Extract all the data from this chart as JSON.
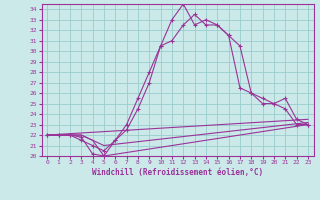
{
  "xlabel": "Windchill (Refroidissement éolien,°C)",
  "bg_color": "#cce9e9",
  "grid_color": "#99cccc",
  "line_color": "#993399",
  "xlim": [
    -0.5,
    23.5
  ],
  "ylim": [
    20,
    34.5
  ],
  "xticks": [
    0,
    1,
    2,
    3,
    4,
    5,
    6,
    7,
    8,
    9,
    10,
    11,
    12,
    13,
    14,
    15,
    16,
    17,
    18,
    19,
    20,
    21,
    22,
    23
  ],
  "yticks": [
    20,
    21,
    22,
    23,
    24,
    25,
    26,
    27,
    28,
    29,
    30,
    31,
    32,
    33,
    34
  ],
  "line1_x": [
    0,
    1,
    2,
    3,
    4,
    5,
    6,
    7,
    8,
    9,
    10,
    11,
    12,
    13,
    14,
    15,
    16,
    17,
    18,
    19,
    20,
    21,
    22,
    23
  ],
  "line1_y": [
    22.0,
    22.0,
    22.0,
    21.5,
    21.0,
    20.5,
    21.5,
    22.5,
    24.5,
    27.0,
    30.5,
    33.0,
    34.5,
    32.5,
    33.0,
    32.5,
    31.5,
    30.5,
    26.0,
    25.0,
    25.0,
    24.5,
    23.0,
    23.0
  ],
  "line2_x": [
    0,
    1,
    2,
    3,
    4,
    5,
    6,
    7,
    8,
    9,
    10,
    11,
    12,
    13,
    14,
    15,
    16,
    17,
    18,
    19,
    20,
    21,
    22,
    23
  ],
  "line2_y": [
    22.0,
    22.0,
    22.0,
    21.8,
    20.2,
    20.0,
    21.5,
    23.0,
    25.5,
    28.0,
    30.5,
    31.0,
    32.5,
    33.5,
    32.5,
    32.5,
    31.5,
    26.5,
    26.0,
    25.5,
    25.0,
    25.5,
    23.5,
    23.0
  ],
  "line3_x": [
    0,
    23
  ],
  "line3_y": [
    22.0,
    23.5
  ],
  "line4_x": [
    0,
    3,
    4,
    5,
    23
  ],
  "line4_y": [
    22.0,
    22.0,
    21.5,
    21.0,
    23.2
  ],
  "line5_x": [
    0,
    3,
    4,
    5,
    23
  ],
  "line5_y": [
    22.0,
    22.0,
    21.5,
    20.0,
    23.0
  ]
}
